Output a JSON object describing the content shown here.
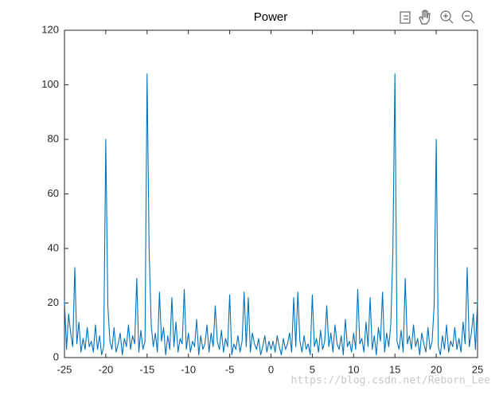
{
  "chart_data": {
    "type": "line",
    "title": "Power",
    "x": [
      -25,
      -24.75,
      -24.5,
      -24.25,
      -24,
      -23.75,
      -23.5,
      -23.25,
      -23,
      -22.75,
      -22.5,
      -22.25,
      -22,
      -21.75,
      -21.5,
      -21.25,
      -21,
      -20.75,
      -20.5,
      -20.25,
      -20,
      -19.75,
      -19.5,
      -19.25,
      -19,
      -18.75,
      -18.5,
      -18.25,
      -18,
      -17.75,
      -17.5,
      -17.25,
      -17,
      -16.75,
      -16.5,
      -16.25,
      -16,
      -15.75,
      -15.5,
      -15.25,
      -15,
      -14.75,
      -14.5,
      -14.25,
      -14,
      -13.75,
      -13.5,
      -13.25,
      -13,
      -12.75,
      -12.5,
      -12.25,
      -12,
      -11.75,
      -11.5,
      -11.25,
      -11,
      -10.75,
      -10.5,
      -10.25,
      -10,
      -9.75,
      -9.5,
      -9.25,
      -9,
      -8.75,
      -8.5,
      -8.25,
      -8,
      -7.75,
      -7.5,
      -7.25,
      -7,
      -6.75,
      -6.5,
      -6.25,
      -6,
      -5.75,
      -5.5,
      -5.25,
      -5,
      -4.75,
      -4.5,
      -4.25,
      -4,
      -3.75,
      -3.5,
      -3.25,
      -3,
      -2.75,
      -2.5,
      -2.25,
      -2,
      -1.75,
      -1.5,
      -1.25,
      -1,
      -0.75,
      -0.5,
      -0.25,
      0,
      0.25,
      0.5,
      0.75,
      1,
      1.25,
      1.5,
      1.75,
      2,
      2.25,
      2.5,
      2.75,
      3,
      3.25,
      3.5,
      3.75,
      4,
      4.25,
      4.5,
      4.75,
      5,
      5.25,
      5.5,
      5.75,
      6,
      6.25,
      6.5,
      6.75,
      7,
      7.25,
      7.5,
      7.75,
      8,
      8.25,
      8.5,
      8.75,
      9,
      9.25,
      9.5,
      9.75,
      10,
      10.25,
      10.5,
      10.75,
      11,
      11.25,
      11.5,
      11.75,
      12,
      12.25,
      12.5,
      12.75,
      13,
      13.25,
      13.5,
      13.75,
      14,
      14.25,
      14.5,
      14.75,
      15,
      15.25,
      15.5,
      15.75,
      16,
      16.25,
      16.5,
      16.75,
      17,
      17.25,
      17.5,
      17.75,
      18,
      18.25,
      18.5,
      18.75,
      19,
      19.25,
      19.5,
      19.75,
      20,
      20.25,
      20.5,
      20.75,
      21,
      21.25,
      21.5,
      21.75,
      22,
      22.25,
      22.5,
      22.75,
      23,
      23.25,
      23.5,
      23.75,
      24,
      24.25,
      24.5,
      24.75,
      25
    ],
    "series": [
      {
        "color": "#0072bd",
        "values": [
          21,
          3,
          16,
          9,
          4,
          33,
          5,
          13,
          2,
          7,
          3,
          11,
          4,
          6,
          2,
          12,
          3,
          8,
          1,
          4,
          80,
          19,
          6,
          3,
          11,
          2,
          5,
          9,
          1,
          7,
          4,
          12,
          3,
          8,
          5,
          29,
          2,
          10,
          3,
          6,
          104,
          39,
          12,
          4,
          9,
          2,
          24,
          6,
          11,
          1,
          8,
          3,
          22,
          4,
          13,
          2,
          7,
          5,
          25,
          3,
          9,
          2,
          6,
          4,
          14,
          1,
          8,
          3,
          5,
          12,
          2,
          9,
          4,
          19,
          6,
          3,
          10,
          2,
          7,
          4,
          23,
          1,
          5,
          3,
          8,
          2,
          6,
          24,
          4,
          22,
          2,
          9,
          5,
          3,
          7,
          1,
          4,
          8,
          2,
          6,
          3,
          6,
          2,
          8,
          4,
          1,
          7,
          3,
          5,
          9,
          2,
          22,
          4,
          24,
          6,
          2,
          8,
          3,
          5,
          1,
          23,
          4,
          7,
          2,
          10,
          3,
          6,
          19,
          4,
          9,
          2,
          12,
          5,
          3,
          8,
          1,
          14,
          4,
          6,
          2,
          9,
          3,
          25,
          5,
          7,
          2,
          13,
          4,
          22,
          3,
          8,
          1,
          11,
          6,
          24,
          2,
          9,
          4,
          12,
          39,
          104,
          6,
          3,
          10,
          2,
          29,
          5,
          8,
          3,
          12,
          4,
          7,
          1,
          9,
          5,
          2,
          11,
          3,
          6,
          19,
          80,
          4,
          1,
          8,
          3,
          12,
          2,
          6,
          4,
          11,
          3,
          7,
          2,
          13,
          5,
          33,
          4,
          9,
          16,
          3,
          21
        ]
      }
    ],
    "xlim": [
      -25,
      25
    ],
    "xticks": [
      -25,
      -20,
      -15,
      -10,
      -5,
      0,
      5,
      10,
      15,
      20,
      25
    ],
    "ylim": [
      0,
      120
    ],
    "yticks": [
      0,
      20,
      40,
      60,
      80,
      100,
      120
    ],
    "grid": false,
    "watermark": "https://blog.csdn.net/Reborn_Lee"
  }
}
